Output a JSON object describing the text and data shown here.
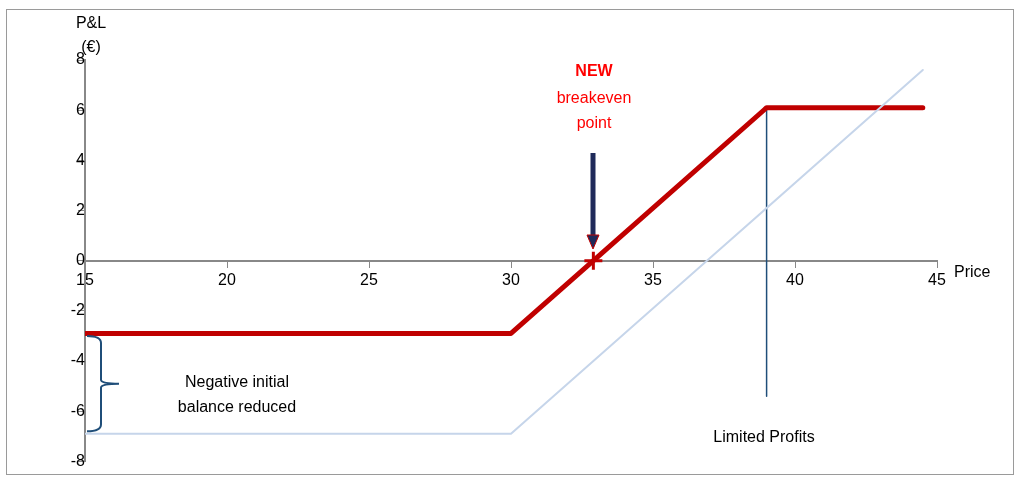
{
  "chart_data": {
    "type": "line",
    "xlabel": "Price",
    "ylabel": "P&L (€)",
    "xlim": [
      15,
      45
    ],
    "xticks": [
      15,
      20,
      25,
      30,
      35,
      40,
      45
    ],
    "ylim": [
      -8,
      8
    ],
    "yticks": [
      -8,
      -6,
      -4,
      -2,
      0,
      2,
      4,
      6,
      8
    ],
    "grid": false,
    "legend": false,
    "marker": "none",
    "line_style": "solid",
    "series": [
      {
        "color": "#c6d5ea",
        "x": [
          15,
          30,
          44.5
        ],
        "values": [
          -6.9,
          -6.9,
          7.6
        ]
      },
      {
        "color": "#c00000",
        "x": [
          15,
          30,
          39,
          44.5
        ],
        "values": [
          -2.9,
          -2.9,
          6.1,
          6.1
        ]
      },
      {
        "color": "#1f4e79",
        "x": [
          39,
          39
        ],
        "values": [
          6.1,
          -5.4
        ]
      },
      {
        "type": "scatter",
        "color": "#c00000",
        "marker": "cross",
        "x": [
          32.9
        ],
        "values": [
          0
        ]
      }
    ],
    "annotations": [
      "NEW",
      "breakeven point",
      "Negative initial balance reduced",
      "Limited Profits"
    ]
  }
}
